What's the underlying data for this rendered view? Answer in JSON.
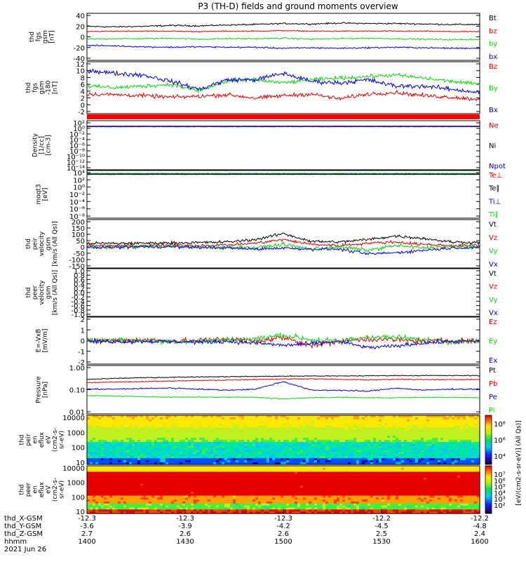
{
  "figure": {
    "title": "P3 (TH-D) fields and ground moments overview",
    "date": "2021 Jun 26",
    "spectrogram_colorbar_label": "[eV/(cm2-s-sr-eV)] (All Qs)]"
  },
  "x_axis": {
    "ticks": [
      "1400",
      "1430",
      "1500",
      "1530",
      "1600"
    ],
    "ephemeris": [
      {
        "label": "thd_X-GSM",
        "values": [
          "-12.3",
          "-12.3",
          "-12.3",
          "-12.2",
          "-12.2"
        ]
      },
      {
        "label": "thd_Y-GSM",
        "values": [
          "-3.6",
          "-3.9",
          "-4.2",
          "-4.5",
          "-4.8"
        ]
      },
      {
        "label": "thd_Z-GSM",
        "values": [
          "2.7",
          "2.6",
          "2.6",
          "2.5",
          "2.4"
        ]
      },
      {
        "label": "hhmm",
        "values": []
      }
    ]
  },
  "colors": {
    "black": "#000000",
    "red": "#e00000",
    "green": "#10d010",
    "blue": "#0000e0"
  },
  "chart_data": [
    {
      "id": "fgs",
      "type": "line",
      "ylabel_lines": [
        "thd",
        "fgs",
        "gsm",
        "[nT]"
      ],
      "yticks": [
        "40",
        "20",
        "0",
        "-20",
        "-40"
      ],
      "ylim": [
        -45,
        45
      ],
      "series": [
        {
          "name": "Bt",
          "color": "black",
          "base": 25,
          "noise": 1.5,
          "profile": [
            22,
            21,
            22,
            24,
            23,
            25,
            26,
            28,
            27,
            29,
            28,
            28,
            27,
            26,
            26
          ]
        },
        {
          "name": "bz",
          "color": "red",
          "base": 12,
          "noise": 1.0,
          "profile": [
            11,
            12,
            12,
            12,
            11,
            12,
            12,
            13,
            12,
            12,
            12,
            12,
            12,
            11,
            11
          ]
        },
        {
          "name": "by",
          "color": "green",
          "base": -4,
          "noise": 1.5,
          "profile": [
            -5,
            -4,
            -4,
            -3,
            -5,
            -4,
            -4,
            -3,
            -5,
            -4,
            -3,
            -4,
            -5,
            -6,
            -5
          ]
        },
        {
          "name": "bx",
          "color": "blue",
          "base": -20,
          "noise": 1.5,
          "profile": [
            -18,
            -19,
            -21,
            -22,
            -21,
            -22,
            -22,
            -24,
            -23,
            -24,
            -23,
            -22,
            -23,
            -24,
            -24
          ]
        }
      ]
    },
    {
      "id": "fgs-zoom",
      "type": "line",
      "ylabel_lines": [
        "thd",
        "fgs",
        "gsm",
        "-180",
        "[nT]"
      ],
      "yticks": [
        "12",
        "10",
        "8",
        "6",
        "4",
        "2",
        "0",
        "-2"
      ],
      "ylim": [
        -3,
        12
      ],
      "series": [
        {
          "name": "Bz",
          "color": "red",
          "base": 2,
          "noise": 0.6,
          "profile": [
            2.5,
            2.3,
            2.0,
            1.5,
            1.8,
            2.3,
            1.2,
            2.0,
            2.5,
            1.0,
            2.5,
            3.0,
            2.0,
            1.5,
            0.8
          ]
        },
        {
          "name": "By",
          "color": "green",
          "base": 5,
          "noise": 0.6,
          "profile": [
            5.0,
            4.5,
            5.0,
            5.5,
            3.5,
            6.5,
            7.0,
            6.0,
            7.0,
            7.5,
            8.0,
            8.5,
            7.5,
            6.5,
            5.5
          ]
        },
        {
          "name": "Bx",
          "color": "blue",
          "base": 8,
          "noise": 0.7,
          "profile": [
            10.0,
            9.0,
            8.5,
            6.5,
            4.0,
            7.0,
            7.0,
            9.0,
            6.5,
            6.0,
            7.0,
            5.0,
            5.0,
            4.0,
            3.0
          ]
        }
      ]
    },
    {
      "id": "density",
      "type": "line",
      "log": true,
      "ylabel_lines": [
        "Density",
        "[1/cc]",
        "[cm-3]"
      ],
      "yticks": [
        "10²",
        "10⁰",
        "10⁻²",
        "10⁻⁴",
        "10⁻⁶",
        "10⁻⁸",
        "10⁻¹⁰",
        "10⁻¹²",
        "10⁻¹⁴"
      ],
      "ylim": [
        -14,
        2
      ],
      "series": [
        {
          "name": "Ne",
          "color": "red",
          "base": 0.8,
          "noise": 0.05
        },
        {
          "name": "Ni",
          "color": "black",
          "base": 0.6,
          "noise": 0.05
        },
        {
          "name": "Npot",
          "color": "blue",
          "base": 0.7,
          "noise": 0.05
        }
      ]
    },
    {
      "id": "temperature",
      "type": "line",
      "log": true,
      "ylabel_lines": [
        "moqt3",
        "[eV]"
      ],
      "yticks": [
        "10⁴",
        "10²",
        "10⁰",
        "10⁻²",
        "10⁻⁴",
        "10⁻⁶",
        "10⁻⁸"
      ],
      "ylim": [
        -8,
        4
      ],
      "series": [
        {
          "name": "Te⊥",
          "color": "red",
          "base": 3.6,
          "noise": 0.05
        },
        {
          "name": "Te∥",
          "color": "black",
          "base": 3.5,
          "noise": 0.05
        },
        {
          "name": "Ti⊥",
          "color": "blue",
          "base": 3.7,
          "noise": 0.05
        },
        {
          "name": "Ti∥",
          "color": "green",
          "base": 3.8,
          "noise": 0.05
        }
      ]
    },
    {
      "id": "peir-velocity",
      "type": "line",
      "ylabel_lines": [
        "thd",
        "peir",
        "velocity",
        "gsm",
        "[km/s (All Qs)]"
      ],
      "yticks": [
        "200",
        "150",
        "100",
        "50",
        "0",
        "-50",
        "-100",
        "-150"
      ],
      "ylim": [
        -160,
        210
      ],
      "series": [
        {
          "name": "Vt",
          "color": "black",
          "base": 30,
          "noise": 12,
          "profile": [
            30,
            28,
            30,
            32,
            35,
            40,
            60,
            110,
            45,
            40,
            60,
            90,
            70,
            40,
            35
          ]
        },
        {
          "name": "Vz",
          "color": "red",
          "base": 10,
          "noise": 12,
          "profile": [
            10,
            8,
            10,
            12,
            10,
            15,
            30,
            60,
            20,
            10,
            30,
            40,
            20,
            10,
            10
          ]
        },
        {
          "name": "Vy",
          "color": "green",
          "base": 0,
          "noise": 15,
          "profile": [
            0,
            -5,
            0,
            5,
            -10,
            0,
            -10,
            20,
            -20,
            0,
            -30,
            10,
            -10,
            0,
            0
          ]
        },
        {
          "name": "Vx",
          "color": "blue",
          "base": -5,
          "noise": 12,
          "profile": [
            -5,
            -5,
            0,
            0,
            -5,
            -10,
            -20,
            -10,
            -20,
            -20,
            -60,
            -50,
            -30,
            -10,
            -5
          ]
        }
      ]
    },
    {
      "id": "peer-velocity",
      "type": "line",
      "ylabel_lines": [
        "thd",
        "peer",
        "velocity",
        "gsm",
        "[km/s (All Qs)]"
      ],
      "yticks": [
        "1.0",
        "0.8",
        "0.6",
        "0.4",
        "0.2",
        "0.0",
        "-0.2",
        "-0.4",
        "-0.6",
        "-0.8",
        "-1.0"
      ],
      "ylim": [
        -1,
        1
      ],
      "series": [
        {
          "name": "Vt",
          "color": "black",
          "values": []
        },
        {
          "name": "Vz",
          "color": "red",
          "values": []
        },
        {
          "name": "Vy",
          "color": "green",
          "values": []
        },
        {
          "name": "Vx",
          "color": "blue",
          "values": []
        }
      ]
    },
    {
      "id": "efield",
      "type": "line",
      "ylabel_lines": [
        "E=-VxB",
        "[mV/m]"
      ],
      "yticks": [
        "2",
        "1",
        "0",
        "-1",
        "-2"
      ],
      "ylim": [
        -2.6,
        2.8
      ],
      "series": [
        {
          "name": "Ez",
          "color": "red",
          "base": 0,
          "noise": 0.35,
          "profile": [
            0,
            0.1,
            0.2,
            0,
            0.1,
            0.3,
            0,
            0.5,
            -0.5,
            0,
            0.3,
            0.2,
            0,
            0.1,
            0
          ]
        },
        {
          "name": "Ey",
          "color": "green",
          "base": 0,
          "noise": 0.35,
          "profile": [
            0.1,
            0.2,
            0.1,
            0,
            0,
            0.2,
            0.3,
            0.8,
            0.2,
            0,
            0.6,
            0.5,
            0.2,
            0,
            0.1
          ]
        },
        {
          "name": "Ex",
          "color": "blue",
          "base": 0,
          "noise": 0.25,
          "profile": [
            0,
            0,
            0,
            0,
            -0.1,
            0,
            -0.2,
            -0.5,
            -0.3,
            0,
            -0.8,
            -0.6,
            -0.2,
            0,
            0
          ]
        }
      ]
    },
    {
      "id": "pressure",
      "type": "line",
      "log": true,
      "ylabel_lines": [
        "Pressure",
        "[nPa]"
      ],
      "yticks": [
        "1.00",
        "0.10",
        "0.01"
      ],
      "ylim": [
        -2,
        0.05
      ],
      "series": [
        {
          "name": "Pt",
          "color": "black",
          "base": -0.45,
          "noise": 0.02,
          "profile": [
            -0.5,
            -0.45,
            -0.42,
            -0.4,
            -0.38,
            -0.37,
            -0.36,
            -0.35,
            -0.34,
            -0.34,
            -0.33,
            -0.32,
            -0.32,
            -0.32,
            -0.32
          ]
        },
        {
          "name": "Pb",
          "color": "red",
          "base": -0.6,
          "noise": 0.02,
          "profile": [
            -0.65,
            -0.62,
            -0.6,
            -0.58,
            -0.55,
            -0.53,
            -0.5,
            -0.48,
            -0.47,
            -0.5,
            -0.52,
            -0.5,
            -0.5,
            -0.51,
            -0.5
          ]
        },
        {
          "name": "Pe",
          "color": "blue",
          "base": -0.95,
          "noise": 0.03,
          "profile": [
            -0.95,
            -0.95,
            -0.92,
            -0.9,
            -0.95,
            -1.0,
            -0.95,
            -0.6,
            -1.0,
            -1.0,
            -1.05,
            -0.9,
            -1.0,
            -0.95,
            -0.95
          ]
        },
        {
          "name": "Pi",
          "color": "green",
          "base": -1.3,
          "noise": 0.02,
          "profile": [
            -1.25,
            -1.27,
            -1.3,
            -1.32,
            -1.32,
            -1.32,
            -1.33,
            -1.4,
            -1.35,
            -1.33,
            -1.35,
            -1.35,
            -1.33,
            -1.33,
            -1.35
          ]
        }
      ]
    },
    {
      "id": "peir-spectrogram",
      "type": "heatmap",
      "ylabel_lines": [
        "thd",
        "peir",
        "en",
        "eflux",
        "eV",
        "(cm2-s-",
        "sr-eV)"
      ],
      "yticks": [
        "10000",
        "1000",
        "100",
        "10"
      ],
      "ylim_log10": [
        0.7,
        4.3
      ],
      "colorbar_ticks": [
        "10⁸",
        "10⁶",
        "10⁴"
      ]
    },
    {
      "id": "peer-spectrogram",
      "type": "heatmap",
      "ylabel_lines": [
        "thd",
        "peer",
        "en",
        "eflux",
        "eV",
        "(cm2-s-",
        "sr-eV)"
      ],
      "yticks": [
        "10000",
        "1000",
        "100",
        "10"
      ],
      "ylim_log10": [
        0.7,
        4.3
      ],
      "colorbar_ticks": [
        "10⁷",
        "10⁶",
        "10⁵",
        "10⁴",
        "10³",
        "10²"
      ]
    }
  ]
}
